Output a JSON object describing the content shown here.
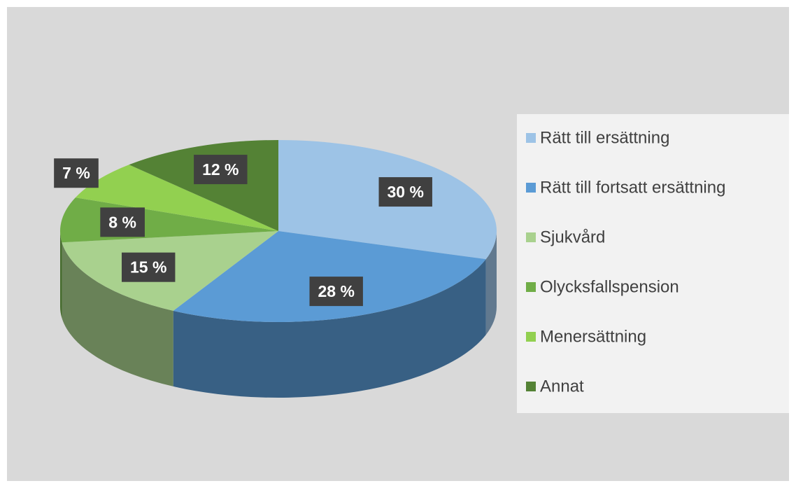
{
  "chart_data": {
    "type": "pie",
    "categories": [
      "Rätt till ersättning",
      "Rätt till fortsatt ersättning",
      "Sjukvård",
      "Olycksfallspension",
      "Menersättning",
      "Annat"
    ],
    "values": [
      30,
      28,
      15,
      8,
      7,
      12
    ],
    "value_labels": [
      "30 %",
      "28 %",
      "15 %",
      "8 %",
      "7 %",
      "12 %"
    ],
    "colors": [
      "#9dc3e6",
      "#5b9bd5",
      "#a9d18e",
      "#70ad47",
      "#92d050",
      "#548235"
    ],
    "legend": "right"
  }
}
